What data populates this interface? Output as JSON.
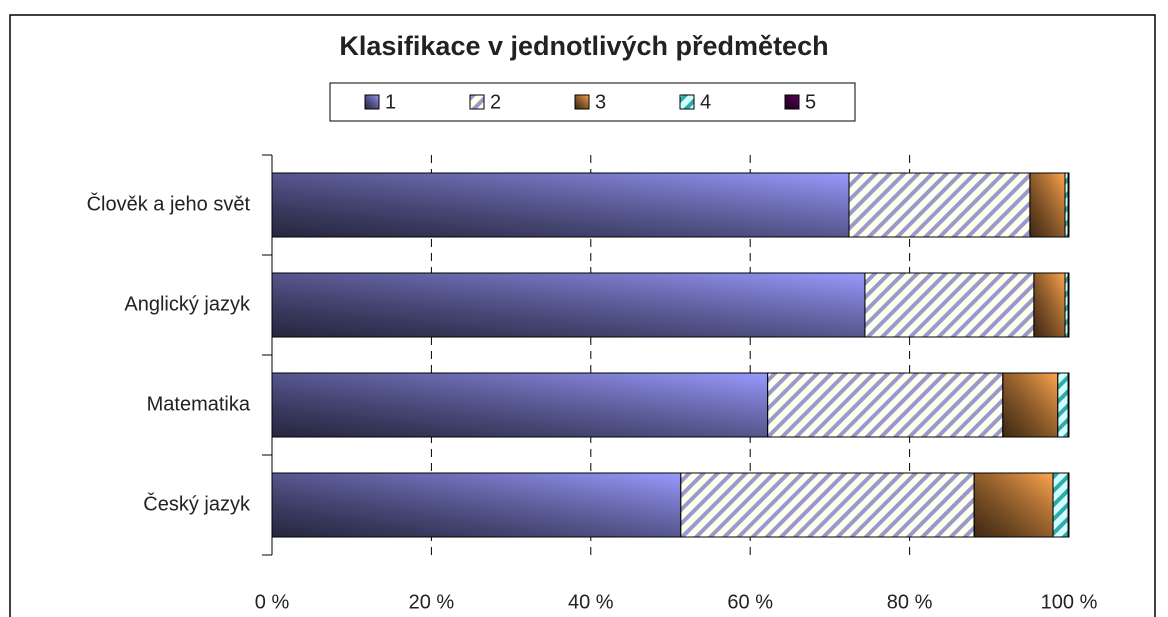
{
  "chart_data": {
    "type": "stacked_barh",
    "title": "Klasifikace v jednotlivých předmětech",
    "categories": [
      "Člověk a jeho svět",
      "Anglický jazyk",
      "Matematika",
      "Český jazyk"
    ],
    "series": [
      {
        "name": "1",
        "color": "#9a9aff",
        "values": [
          72.4,
          74.4,
          62.2,
          51.3
        ]
      },
      {
        "name": "2",
        "color": "#9999cc",
        "values": [
          22.7,
          21.2,
          29.5,
          36.8
        ]
      },
      {
        "name": "3",
        "color": "#ffa64d",
        "values": [
          4.4,
          3.9,
          6.9,
          9.9
        ]
      },
      {
        "name": "4",
        "color": "#33aaaa",
        "values": [
          0.4,
          0.4,
          1.3,
          1.9
        ]
      },
      {
        "name": "5",
        "color": "#660066",
        "values": [
          0.1,
          0.1,
          0.1,
          0.1
        ]
      }
    ],
    "xlim": [
      0,
      100
    ],
    "xticks": [
      {
        "value": 0,
        "label": "0 %"
      },
      {
        "value": 20,
        "label": "20 %"
      },
      {
        "value": 40,
        "label": "40 %"
      },
      {
        "value": 60,
        "label": "60 %"
      },
      {
        "value": 80,
        "label": "80 %"
      },
      {
        "value": 100,
        "label": "100 %"
      }
    ],
    "grid": true
  }
}
